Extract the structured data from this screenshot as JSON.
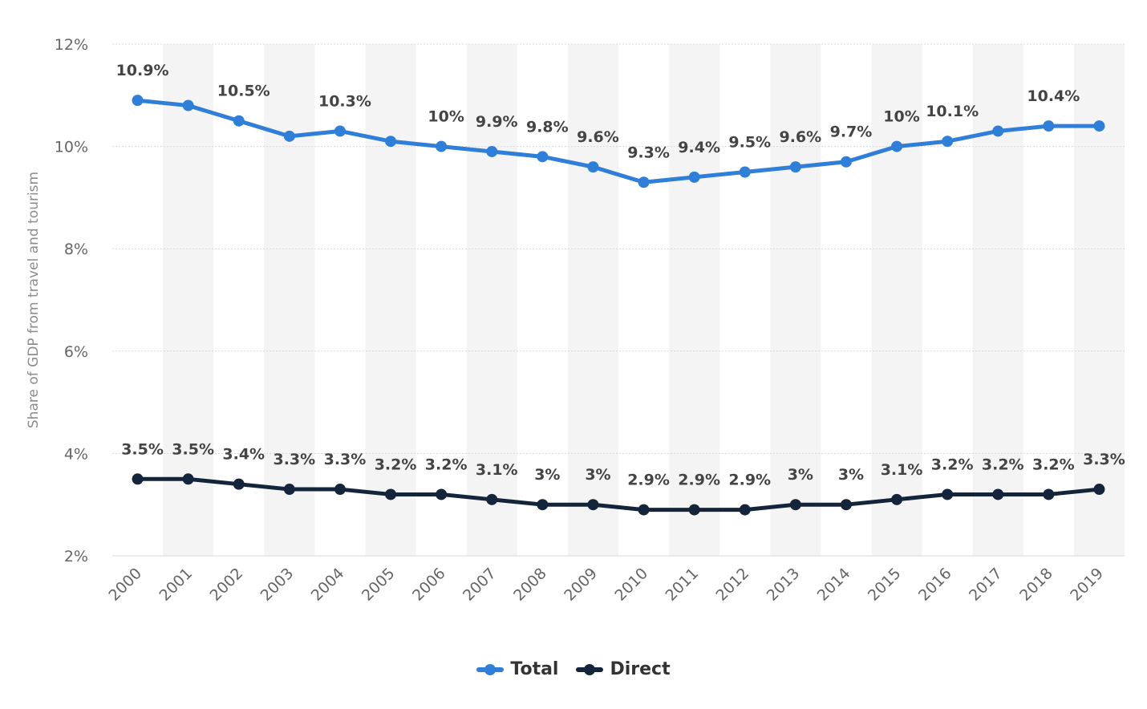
{
  "chart_data": {
    "type": "line",
    "ylabel": "Share of GDP from travel and tourism",
    "xlabel": "",
    "ylim": [
      2,
      12
    ],
    "yticks": [
      "2%",
      "4%",
      "6%",
      "8%",
      "10%",
      "12%"
    ],
    "ytick_values": [
      2,
      4,
      6,
      8,
      10,
      12
    ],
    "categories": [
      "2000",
      "2001",
      "2002",
      "2003",
      "2004",
      "2005",
      "2006",
      "2007",
      "2008",
      "2009",
      "2010",
      "2011",
      "2012",
      "2013",
      "2014",
      "2015",
      "2016",
      "2017",
      "2018",
      "2019"
    ],
    "grid": true,
    "legend_position": "bottom",
    "series": [
      {
        "name": "Total",
        "color": "#2f7ed8",
        "values": [
          10.9,
          10.8,
          10.5,
          10.2,
          10.3,
          10.1,
          10,
          9.9,
          9.8,
          9.6,
          9.3,
          9.4,
          9.5,
          9.6,
          9.7,
          10,
          10.1,
          10.3,
          10.4,
          10.4
        ],
        "labels": [
          "10.9%",
          "",
          "10.5%",
          "",
          "10.3%",
          "",
          "10%",
          "9.9%",
          "9.8%",
          "9.6%",
          "9.3%",
          "9.4%",
          "9.5%",
          "9.6%",
          "9.7%",
          "10%",
          "10.1%",
          "",
          "10.4%",
          ""
        ]
      },
      {
        "name": "Direct",
        "color": "#14253b",
        "values": [
          3.5,
          3.5,
          3.4,
          3.3,
          3.3,
          3.2,
          3.2,
          3.1,
          3,
          3,
          2.9,
          2.9,
          2.9,
          3,
          3,
          3.1,
          3.2,
          3.2,
          3.2,
          3.3
        ],
        "labels": [
          "3.5%",
          "3.5%",
          "3.4%",
          "3.3%",
          "3.3%",
          "3.2%",
          "3.2%",
          "3.1%",
          "3%",
          "3%",
          "2.9%",
          "2.9%",
          "2.9%",
          "3%",
          "3%",
          "3.1%",
          "3.2%",
          "3.2%",
          "3.2%",
          "3.3%"
        ]
      }
    ]
  },
  "legend": {
    "total_label": "Total",
    "direct_label": "Direct"
  },
  "colors": {
    "total": "#2f7ed8",
    "direct": "#14253b",
    "band": "#f4f4f4",
    "grid": "#d8d8d8"
  }
}
